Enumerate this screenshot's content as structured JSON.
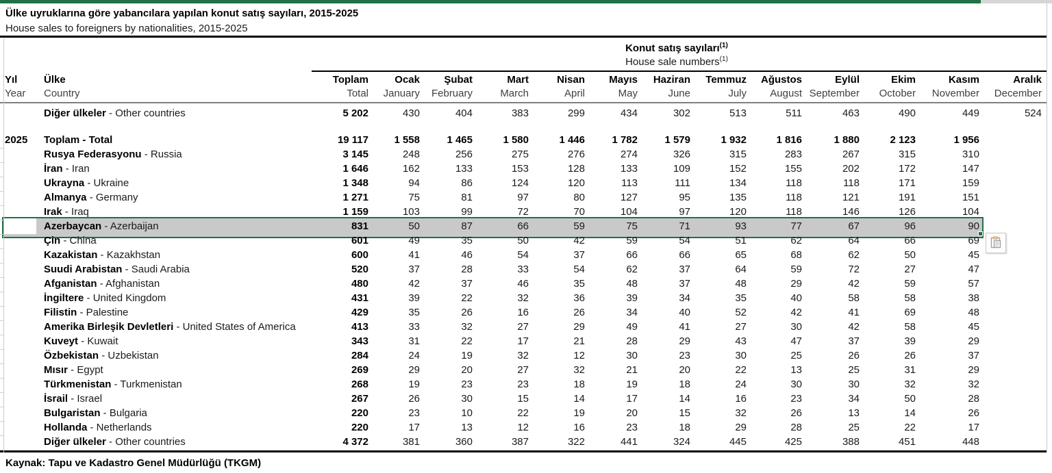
{
  "header": {
    "title_tr": "Ülke uyruklarına göre yabancılara yapılan konut satış sayıları, 2015-2025",
    "title_en": "House sales to foreigners by nationalities, 2015-2025"
  },
  "table": {
    "group_header_tr": "Konut satış sayıları",
    "group_header_en": "House sale numbers",
    "footnote_marker": "(1)",
    "separator": " - ",
    "columns": [
      {
        "tr": "Yıl",
        "en": "Year"
      },
      {
        "tr": "Ülke",
        "en": "Country"
      },
      {
        "tr": "Toplam",
        "en": "Total"
      },
      {
        "tr": "Ocak",
        "en": "January"
      },
      {
        "tr": "Şubat",
        "en": "February"
      },
      {
        "tr": "Mart",
        "en": "March"
      },
      {
        "tr": "Nisan",
        "en": "April"
      },
      {
        "tr": "Mayıs",
        "en": "May"
      },
      {
        "tr": "Haziran",
        "en": "June"
      },
      {
        "tr": "Temmuz",
        "en": "July"
      },
      {
        "tr": "Ağustos",
        "en": "August"
      },
      {
        "tr": "Eylül",
        "en": "September"
      },
      {
        "tr": "Ekim",
        "en": "October"
      },
      {
        "tr": "Kasım",
        "en": "November"
      },
      {
        "tr": "Aralık",
        "en": "December"
      }
    ],
    "rows": [
      {
        "year": "",
        "tr": "Diğer ülkeler",
        "en": "Other countries",
        "bold_values": false,
        "highlight": false,
        "values": [
          "5 202",
          "430",
          "404",
          "383",
          "299",
          "434",
          "302",
          "513",
          "511",
          "463",
          "490",
          "449",
          "524"
        ]
      },
      {
        "spacer": true
      },
      {
        "year": "2025",
        "tr": "Toplam",
        "en": "Total",
        "bold_values": true,
        "highlight": false,
        "values": [
          "19 117",
          "1 558",
          "1 465",
          "1 580",
          "1 446",
          "1 782",
          "1 579",
          "1 932",
          "1 816",
          "1 880",
          "2 123",
          "1 956",
          ""
        ]
      },
      {
        "year": "",
        "tr": "Rusya Federasyonu",
        "en": "Russia",
        "bold_values": false,
        "highlight": false,
        "values": [
          "3 145",
          "248",
          "256",
          "275",
          "276",
          "274",
          "326",
          "315",
          "283",
          "267",
          "315",
          "310",
          ""
        ]
      },
      {
        "year": "",
        "tr": "İran",
        "en": "Iran",
        "bold_values": false,
        "highlight": false,
        "values": [
          "1 646",
          "162",
          "133",
          "153",
          "128",
          "133",
          "109",
          "152",
          "155",
          "202",
          "172",
          "147",
          ""
        ]
      },
      {
        "year": "",
        "tr": "Ukrayna",
        "en": "Ukraine",
        "bold_values": false,
        "highlight": false,
        "values": [
          "1 348",
          "94",
          "86",
          "124",
          "120",
          "113",
          "111",
          "134",
          "118",
          "118",
          "171",
          "159",
          ""
        ]
      },
      {
        "year": "",
        "tr": "Almanya",
        "en": "Germany",
        "bold_values": false,
        "highlight": false,
        "values": [
          "1 271",
          "75",
          "81",
          "97",
          "80",
          "127",
          "95",
          "135",
          "118",
          "121",
          "191",
          "151",
          ""
        ]
      },
      {
        "year": "",
        "tr": "Irak",
        "en": "Iraq",
        "bold_values": false,
        "highlight": false,
        "values": [
          "1 159",
          "103",
          "99",
          "72",
          "70",
          "104",
          "97",
          "120",
          "118",
          "146",
          "126",
          "104",
          ""
        ]
      },
      {
        "year": "",
        "tr": "Azerbaycan",
        "en": "Azerbaijan",
        "bold_values": false,
        "highlight": true,
        "values": [
          "831",
          "50",
          "87",
          "66",
          "59",
          "75",
          "71",
          "93",
          "77",
          "67",
          "96",
          "90",
          ""
        ]
      },
      {
        "year": "",
        "tr": "Çin",
        "en": "China",
        "bold_values": false,
        "highlight": false,
        "values": [
          "601",
          "49",
          "35",
          "50",
          "42",
          "59",
          "54",
          "51",
          "62",
          "64",
          "66",
          "69",
          ""
        ]
      },
      {
        "year": "",
        "tr": "Kazakistan",
        "en": "Kazakhstan",
        "bold_values": false,
        "highlight": false,
        "values": [
          "600",
          "41",
          "46",
          "54",
          "37",
          "66",
          "66",
          "65",
          "68",
          "62",
          "50",
          "45",
          ""
        ]
      },
      {
        "year": "",
        "tr": "Suudi Arabistan",
        "en": "Saudi Arabia",
        "bold_values": false,
        "highlight": false,
        "values": [
          "520",
          "37",
          "28",
          "33",
          "54",
          "62",
          "37",
          "64",
          "59",
          "72",
          "27",
          "47",
          ""
        ]
      },
      {
        "year": "",
        "tr": "Afganistan",
        "en": "Afghanistan",
        "bold_values": false,
        "highlight": false,
        "values": [
          "480",
          "42",
          "37",
          "46",
          "35",
          "48",
          "37",
          "48",
          "29",
          "42",
          "59",
          "57",
          ""
        ]
      },
      {
        "year": "",
        "tr": "İngiltere",
        "en": "United Kingdom",
        "bold_values": false,
        "highlight": false,
        "values": [
          "431",
          "39",
          "22",
          "32",
          "36",
          "39",
          "34",
          "35",
          "40",
          "58",
          "58",
          "38",
          ""
        ]
      },
      {
        "year": "",
        "tr": "Filistin",
        "en": "Palestine",
        "bold_values": false,
        "highlight": false,
        "values": [
          "429",
          "35",
          "26",
          "16",
          "26",
          "34",
          "40",
          "52",
          "42",
          "41",
          "69",
          "48",
          ""
        ]
      },
      {
        "year": "",
        "tr": "Amerika Birleşik Devletleri",
        "en": "United States of America",
        "bold_values": false,
        "highlight": false,
        "values": [
          "413",
          "33",
          "32",
          "27",
          "29",
          "49",
          "41",
          "27",
          "30",
          "42",
          "58",
          "45",
          ""
        ]
      },
      {
        "year": "",
        "tr": "Kuveyt",
        "en": "Kuwait",
        "bold_values": false,
        "highlight": false,
        "values": [
          "343",
          "31",
          "22",
          "17",
          "21",
          "28",
          "29",
          "43",
          "47",
          "37",
          "39",
          "29",
          ""
        ]
      },
      {
        "year": "",
        "tr": "Özbekistan",
        "en": "Uzbekistan",
        "bold_values": false,
        "highlight": false,
        "values": [
          "284",
          "24",
          "19",
          "32",
          "12",
          "30",
          "23",
          "30",
          "25",
          "26",
          "26",
          "37",
          ""
        ]
      },
      {
        "year": "",
        "tr": "Mısır",
        "en": "Egypt",
        "bold_values": false,
        "highlight": false,
        "values": [
          "269",
          "29",
          "20",
          "27",
          "32",
          "21",
          "20",
          "22",
          "13",
          "25",
          "31",
          "29",
          ""
        ]
      },
      {
        "year": "",
        "tr": "Türkmenistan",
        "en": "Turkmenistan",
        "bold_values": false,
        "highlight": false,
        "values": [
          "268",
          "19",
          "23",
          "23",
          "18",
          "19",
          "18",
          "24",
          "30",
          "30",
          "32",
          "32",
          ""
        ]
      },
      {
        "year": "",
        "tr": "İsrail",
        "en": "Israel",
        "bold_values": false,
        "highlight": false,
        "values": [
          "267",
          "26",
          "30",
          "15",
          "14",
          "17",
          "14",
          "16",
          "23",
          "34",
          "50",
          "28",
          ""
        ]
      },
      {
        "year": "",
        "tr": "Bulgaristan",
        "en": "Bulgaria",
        "bold_values": false,
        "highlight": false,
        "values": [
          "220",
          "23",
          "10",
          "22",
          "19",
          "20",
          "15",
          "32",
          "26",
          "13",
          "14",
          "26",
          ""
        ]
      },
      {
        "year": "",
        "tr": "Hollanda",
        "en": "Netherlands",
        "bold_values": false,
        "highlight": false,
        "values": [
          "220",
          "17",
          "13",
          "12",
          "16",
          "23",
          "18",
          "29",
          "28",
          "25",
          "22",
          "17",
          ""
        ]
      },
      {
        "year": "",
        "tr": "Diğer ülkeler",
        "en": "Other countries",
        "bold_values": false,
        "highlight": false,
        "values": [
          "4 372",
          "381",
          "360",
          "387",
          "322",
          "441",
          "324",
          "445",
          "425",
          "388",
          "451",
          "448",
          ""
        ]
      }
    ]
  },
  "footer": {
    "source": "Kaynak: Tapu ve Kadastro Genel Müdürlüğü (TKGM)"
  },
  "colors": {
    "accent_green": "#1f7145",
    "selection_fill": "#c9c9c9",
    "topbar_gray": "#d6d6d6"
  }
}
